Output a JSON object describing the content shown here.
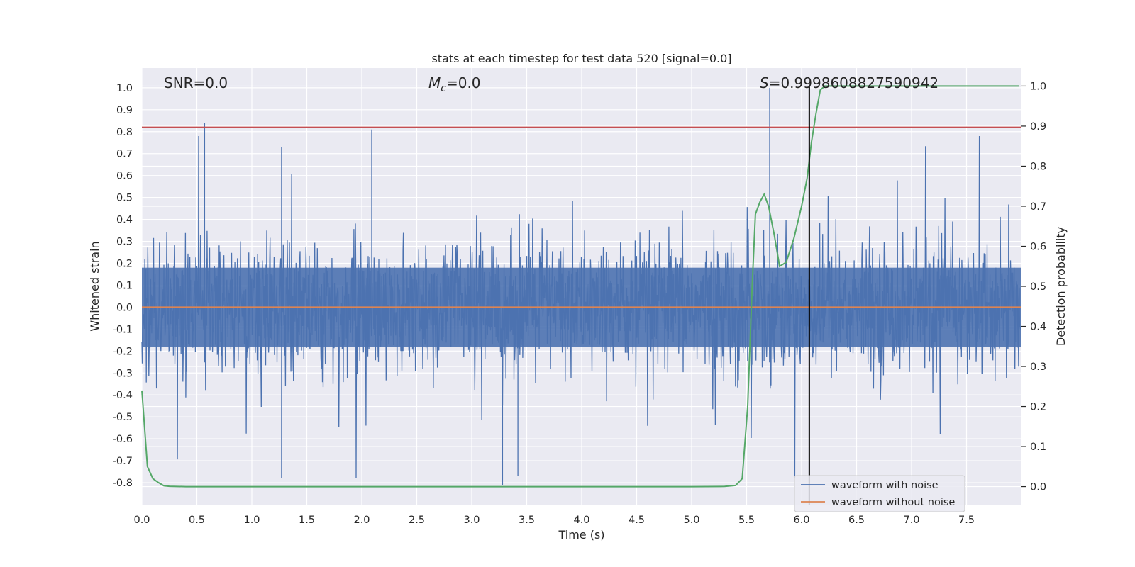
{
  "chart_data": {
    "type": "line",
    "title": "stats at each timestep for test data 520 [signal=0.0]",
    "xlabel": "Time (s)",
    "ylabel": "Whitened strain",
    "y2label": "Detection probability",
    "xlim": [
      0.0,
      8.0
    ],
    "ylim": [
      -0.9,
      1.09
    ],
    "y2lim": [
      -0.045,
      1.045
    ],
    "xticks": [
      "0.0",
      "0.5",
      "1.0",
      "1.5",
      "2.0",
      "2.5",
      "3.0",
      "3.5",
      "4.0",
      "4.5",
      "5.0",
      "5.5",
      "6.0",
      "6.5",
      "7.0",
      "7.5"
    ],
    "yticks": [
      "1.0",
      "0.9",
      "0.8",
      "0.7",
      "0.6",
      "0.5",
      "0.4",
      "0.3",
      "0.2",
      "0.1",
      "0.0",
      "-0.1",
      "-0.2",
      "-0.3",
      "-0.4",
      "-0.5",
      "-0.6",
      "-0.7",
      "-0.8"
    ],
    "y2ticks": [
      "1.0",
      "0.9",
      "0.8",
      "0.7",
      "0.6",
      "0.5",
      "0.4",
      "0.3",
      "0.2",
      "0.1",
      "0.0"
    ],
    "annotations": {
      "snr": "SNR=0.0",
      "mc_symbol": "M",
      "mc_sub": "c",
      "mc_value": "=0.0",
      "s_symbol": "S",
      "s_value": "=0.9998608827590942"
    },
    "threshold": {
      "value": 0.82,
      "color": "#c44e52",
      "axis": "right-prob 0.9"
    },
    "event_marker_time": 6.07,
    "series": [
      {
        "name": "waveform with noise",
        "color": "#4c72b0",
        "note": "dense noise trace; amplitude mostly within about ±0.3, spikes up to 1.0 and down to -0.81",
        "peaks": [
          {
            "t": 0.57,
            "v": 0.84
          },
          {
            "t": 2.09,
            "v": 0.81
          },
          {
            "t": 5.71,
            "v": 1.0
          },
          {
            "t": 1.27,
            "v": 0.73
          },
          {
            "t": 3.28,
            "v": -0.81
          },
          {
            "t": 1.27,
            "v": -0.78
          },
          {
            "t": 3.42,
            "v": -0.77
          }
        ]
      },
      {
        "name": "waveform without noise",
        "color": "#dd8452",
        "constant": 0.0
      },
      {
        "name": "detection probability",
        "color": "#55a868",
        "axis": "right",
        "x": [
          0.0,
          0.05,
          0.1,
          0.15,
          0.2,
          0.25,
          0.4,
          1.0,
          2.0,
          3.0,
          4.0,
          5.0,
          5.3,
          5.4,
          5.46,
          5.51,
          5.55,
          5.58,
          5.62,
          5.66,
          5.7,
          5.75,
          5.8,
          5.86,
          5.93,
          6.0,
          6.05,
          6.09,
          6.13,
          6.17,
          6.21,
          6.25,
          6.3,
          6.5,
          7.0,
          7.5,
          7.98
        ],
        "values": [
          0.24,
          0.05,
          0.02,
          0.01,
          0.002,
          0.0008,
          0.0,
          0.0,
          0.0,
          0.0,
          0.0,
          0.0,
          0.0005,
          0.003,
          0.02,
          0.2,
          0.5,
          0.68,
          0.71,
          0.73,
          0.7,
          0.63,
          0.55,
          0.56,
          0.62,
          0.7,
          0.77,
          0.86,
          0.93,
          0.99,
          1.0,
          1.0,
          1.0,
          1.0,
          1.0,
          1.0,
          1.0
        ]
      }
    ],
    "legend": {
      "position": "lower-right",
      "entries": [
        {
          "label": "waveform with noise",
          "color": "#4c72b0"
        },
        {
          "label": "waveform without noise",
          "color": "#dd8452"
        }
      ]
    }
  }
}
